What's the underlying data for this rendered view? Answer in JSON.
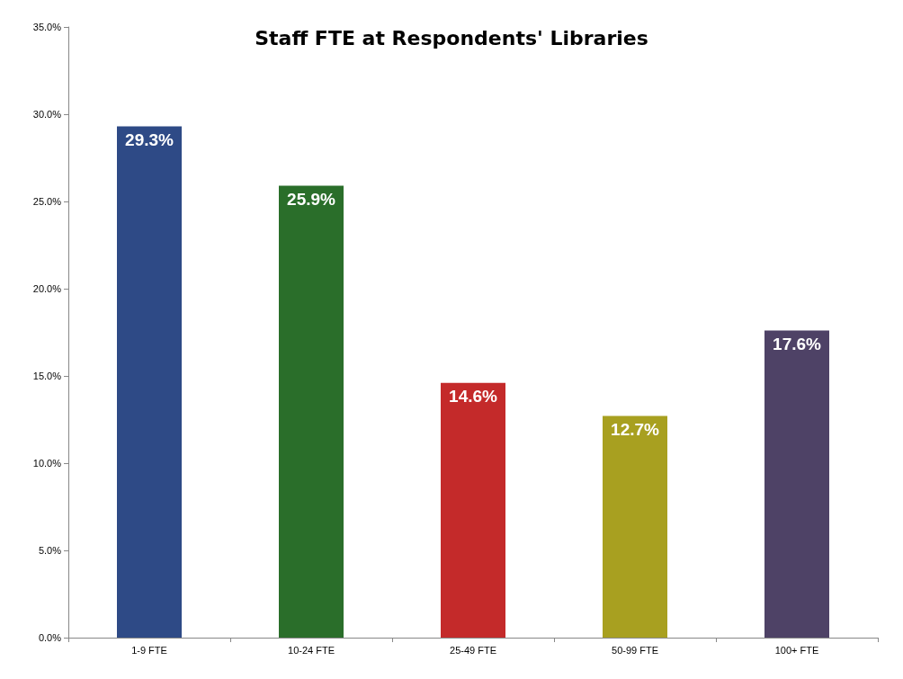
{
  "chart_data": {
    "type": "bar",
    "title": "Staff FTE at Respondents' Libraries",
    "categories": [
      "1-9 FTE",
      "10-24 FTE",
      "25-49 FTE",
      "50-99 FTE",
      "100+ FTE"
    ],
    "values": [
      29.3,
      25.9,
      14.6,
      12.7,
      17.6
    ],
    "colors": [
      "#2e4a86",
      "#2a6e2a",
      "#c42a2a",
      "#a8a020",
      "#4e4266"
    ],
    "value_labels": [
      "29.3%",
      "25.9%",
      "14.6%",
      "12.7%",
      "17.6%"
    ],
    "ylim": [
      0,
      35
    ],
    "yticks": [
      {
        "value": 0,
        "label": "0.0%"
      },
      {
        "value": 5,
        "label": "5.0%"
      },
      {
        "value": 10,
        "label": "10.0%"
      },
      {
        "value": 15,
        "label": "15.0%"
      },
      {
        "value": 20,
        "label": "20.0%"
      },
      {
        "value": 25,
        "label": "25.0%"
      },
      {
        "value": 30,
        "label": "30.0%"
      },
      {
        "value": 35,
        "label": "35.0%"
      }
    ],
    "grid": false
  }
}
